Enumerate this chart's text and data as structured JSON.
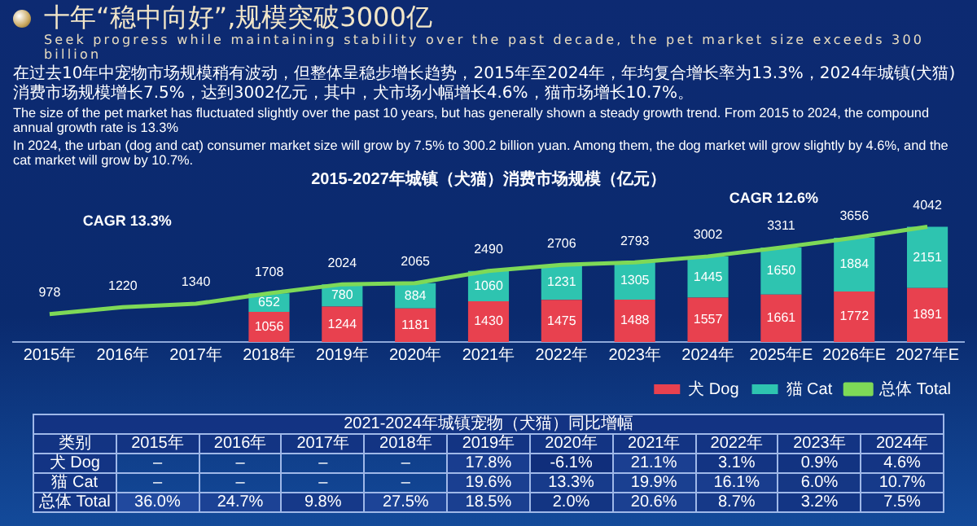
{
  "chart_data": [
    {
      "type": "other",
      "title": "十年“稳中向好”,规模突破3000亿",
      "subtitle": "Seek progress while maintaining stability over the past decade, the pet market size exceeds 300 billion",
      "annotations": [
        "在过去10年中宠物市场规模稍有波动，但整体呈稳步增长趋势，2015年至2024年，年均复合增长率为13.3%，2024年城镇(犬猫)消费市场规模增长7.5%，达到3002亿元，其中，犬市场小幅增长4.6%，猫市场增长10.7%。",
        "The size of the pet market has fluctuated slightly over the past 10 years, but has generally shown a steady growth trend. From 2015 to 2024, the compound annual growth rate is 13.3%",
        "In 2024, the urban (dog and cat) consumer market size will grow by 7.5% to 300.2 billion yuan. Among them, the dog market will grow slightly by 4.6%, and the cat market will grow by 10.7%."
      ]
    },
    {
      "type": "bar",
      "title": "2015-2027年城镇（犬猫）消费市场规模（亿元）",
      "stacked": true,
      "data_labels": true,
      "legend": "bottom",
      "grid": false,
      "marker": "none",
      "categories": [
        "2015年",
        "2016年",
        "2017年",
        "2018年",
        "2019年",
        "2020年",
        "2021年",
        "2022年",
        "2023年",
        "2024年",
        "2025年E",
        "2026年E",
        "2027年E"
      ],
      "series": [
        {
          "name": "犬 Dog",
          "color": "#e8414f",
          "values": [
            null,
            null,
            null,
            1056,
            1244,
            1181,
            1430,
            1475,
            1488,
            1557,
            1661,
            1772,
            1891
          ]
        },
        {
          "name": "猫 Cat",
          "color": "#2ec4b0",
          "values": [
            null,
            null,
            null,
            652,
            780,
            884,
            1060,
            1231,
            1305,
            1445,
            1650,
            1884,
            2151
          ]
        },
        {
          "name": "总体 Total",
          "type": "line",
          "color": "#7ed957",
          "values": [
            978,
            1220,
            1340,
            1708,
            2024,
            2065,
            2490,
            2706,
            2793,
            3002,
            3311,
            3656,
            4042
          ]
        }
      ],
      "annotations": [
        "CAGR 13.3%",
        "CAGR 12.6%"
      ]
    },
    {
      "type": "heatmap",
      "title": "2021-2024年城镇宠物（犬猫）同比增幅",
      "ylabel": "类别",
      "categories": [
        "2015年",
        "2016年",
        "2017年",
        "2018年",
        "2019年",
        "2020年",
        "2021年",
        "2022年",
        "2023年",
        "2024年"
      ],
      "y_categories": [
        "犬 Dog",
        "猫 Cat",
        "总体 Total"
      ],
      "cells": [
        [
          null,
          null,
          null,
          null,
          17.8,
          -6.1,
          21.1,
          3.1,
          0.9,
          4.6
        ],
        [
          null,
          null,
          null,
          null,
          19.6,
          13.3,
          19.9,
          16.1,
          6.0,
          10.7
        ],
        [
          36.0,
          24.7,
          9.8,
          27.5,
          18.5,
          2.0,
          20.6,
          8.7,
          3.2,
          7.5
        ]
      ],
      "cell_labels": [
        [
          "–",
          "–",
          "–",
          "–",
          "17.8%",
          "-6.1%",
          "21.1%",
          "3.1%",
          "0.9%",
          "4.6%"
        ],
        [
          "–",
          "–",
          "–",
          "–",
          "19.6%",
          "13.3%",
          "19.9%",
          "16.1%",
          "6.0%",
          "10.7%"
        ],
        [
          "36.0%",
          "24.7%",
          "9.8%",
          "27.5%",
          "18.5%",
          "2.0%",
          "20.6%",
          "8.7%",
          "3.2%",
          "7.5%"
        ]
      ]
    }
  ]
}
